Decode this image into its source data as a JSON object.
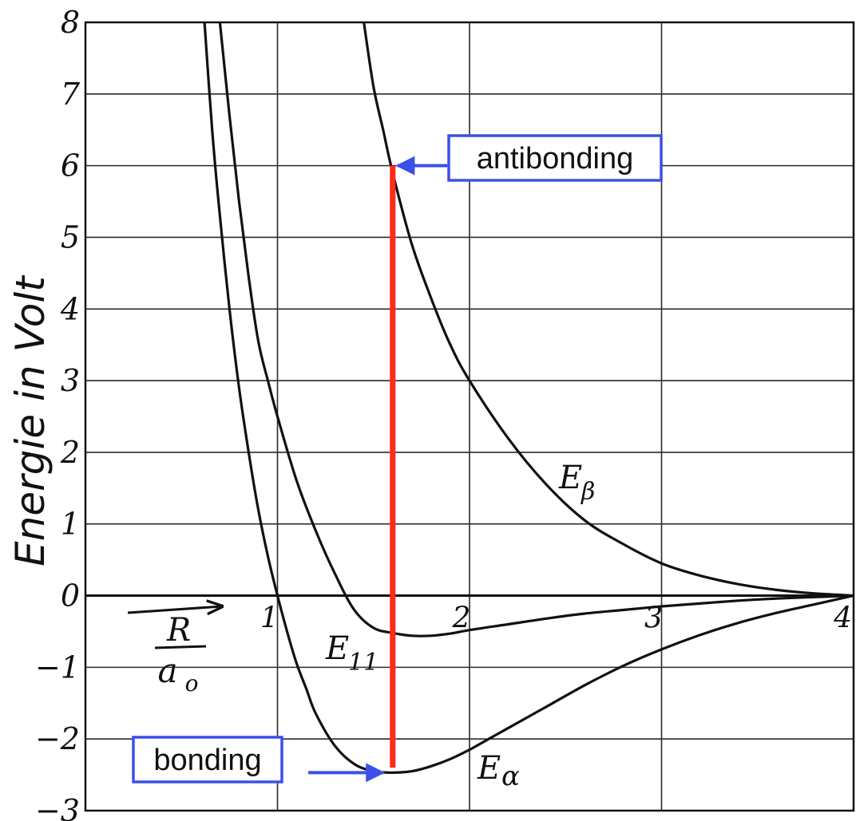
{
  "chart_data": {
    "type": "line",
    "title": "",
    "ylabel": "Energie in Volt",
    "xlabel_numerator": "R",
    "xlabel_denominator": "a",
    "xlabel_denominator_sub": "o",
    "xlim": [
      0,
      4
    ],
    "ylim": [
      -3,
      8
    ],
    "grid": true,
    "x_ticks": [
      "1",
      "2",
      "3",
      "4"
    ],
    "y_ticks": [
      "8",
      "7",
      "6",
      "5",
      "4",
      "3",
      "2",
      "1",
      "0",
      "−1",
      "−2",
      "−3"
    ],
    "series": [
      {
        "name": "Eβ",
        "base": "E",
        "sub": "β",
        "x": [
          1.45,
          1.5,
          1.55,
          1.6,
          1.7,
          1.8,
          1.9,
          2.0,
          2.2,
          2.4,
          2.6,
          2.8,
          3.0,
          3.2,
          3.4,
          3.6,
          3.8,
          4.0
        ],
        "y": [
          8.0,
          7.1,
          6.5,
          5.9,
          4.9,
          4.15,
          3.5,
          3.0,
          2.2,
          1.55,
          1.05,
          0.72,
          0.45,
          0.28,
          0.16,
          0.08,
          0.03,
          0.0
        ]
      },
      {
        "name": "E11",
        "base": "E",
        "sub": "11",
        "x": [
          0.7,
          0.75,
          0.8,
          0.85,
          0.9,
          0.95,
          1.0,
          1.1,
          1.2,
          1.3,
          1.4,
          1.5,
          1.6,
          1.7,
          1.8,
          1.9,
          2.0,
          2.2,
          2.4,
          2.6,
          2.8,
          3.0,
          3.2,
          3.4,
          3.6,
          3.8,
          4.0
        ],
        "y": [
          8.0,
          6.7,
          5.5,
          4.45,
          3.55,
          3.0,
          2.5,
          1.6,
          0.9,
          0.3,
          -0.2,
          -0.45,
          -0.52,
          -0.56,
          -0.56,
          -0.53,
          -0.48,
          -0.4,
          -0.32,
          -0.25,
          -0.2,
          -0.15,
          -0.11,
          -0.07,
          -0.04,
          -0.02,
          0.0
        ]
      },
      {
        "name": "Eα",
        "base": "E",
        "sub": "α",
        "x": [
          0.62,
          0.66,
          0.7,
          0.75,
          0.8,
          0.85,
          0.9,
          0.95,
          1.0,
          1.05,
          1.1,
          1.15,
          1.2,
          1.3,
          1.4,
          1.5,
          1.6,
          1.7,
          1.8,
          1.9,
          2.0,
          2.1,
          2.2,
          2.4,
          2.6,
          2.8,
          3.0,
          3.2,
          3.4,
          3.6,
          3.8,
          4.0
        ],
        "y": [
          8.0,
          6.5,
          5.3,
          4.0,
          2.9,
          2.0,
          1.2,
          0.55,
          0.0,
          -0.5,
          -0.95,
          -1.3,
          -1.65,
          -2.1,
          -2.35,
          -2.45,
          -2.47,
          -2.45,
          -2.38,
          -2.28,
          -2.15,
          -2.0,
          -1.85,
          -1.55,
          -1.25,
          -0.98,
          -0.75,
          -0.55,
          -0.38,
          -0.24,
          -0.12,
          0.0
        ]
      }
    ],
    "annotations": [
      {
        "name": "vertical-marker",
        "x": 1.6,
        "y_from": -2.4,
        "y_to": 6.0,
        "color": "#ff2a1a"
      },
      {
        "name": "antibonding",
        "text": "antibonding",
        "points_to": [
          1.6,
          6.0
        ],
        "color": "#3a50e8"
      },
      {
        "name": "bonding",
        "text": "bonding",
        "points_to": [
          1.6,
          -2.47
        ],
        "color": "#3a50e8"
      }
    ]
  }
}
